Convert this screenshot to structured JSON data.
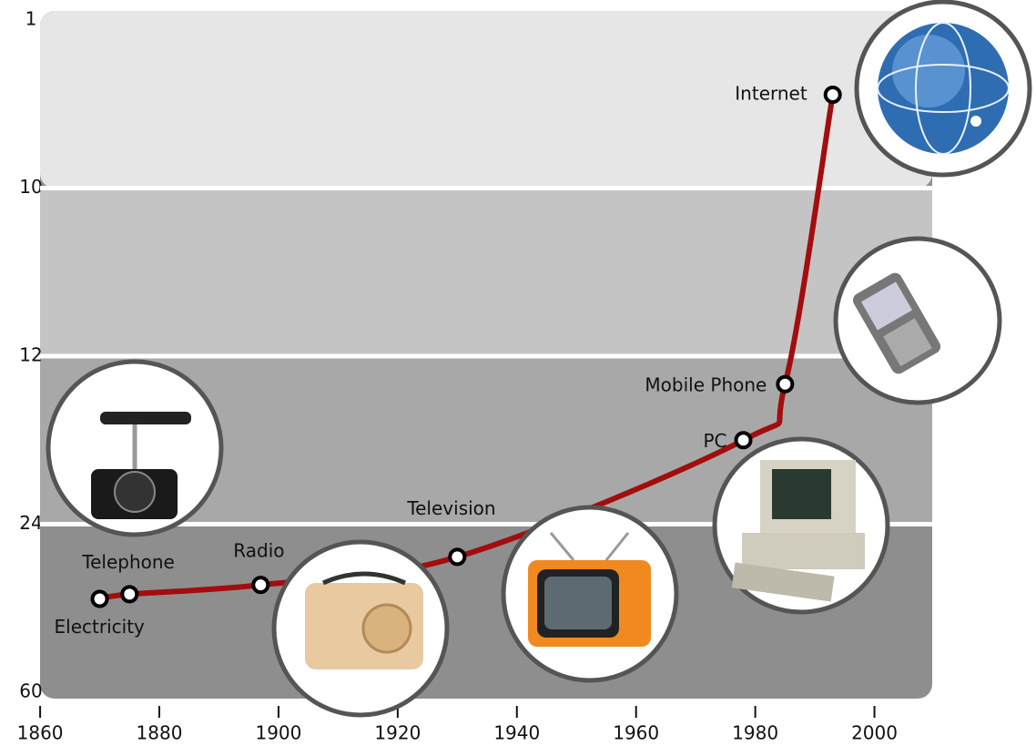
{
  "chart_data": {
    "type": "line",
    "labels": [
      "Electricity",
      "Telephone",
      "Radio",
      "Television",
      "PC",
      "Mobile Phone",
      "Internet"
    ],
    "x": [
      1870,
      1875,
      1897,
      1930,
      1978,
      1985,
      1993
    ],
    "values": [
      40,
      39,
      37,
      31,
      18,
      14,
      5
    ],
    "color": "#a30d0d",
    "xlim": [
      1858,
      2010
    ],
    "xticks": [
      1860,
      1880,
      1900,
      1920,
      1940,
      1960,
      1980,
      2000
    ],
    "ylim": [
      60,
      1
    ],
    "yticks": [
      1,
      10,
      12,
      24,
      60
    ]
  }
}
